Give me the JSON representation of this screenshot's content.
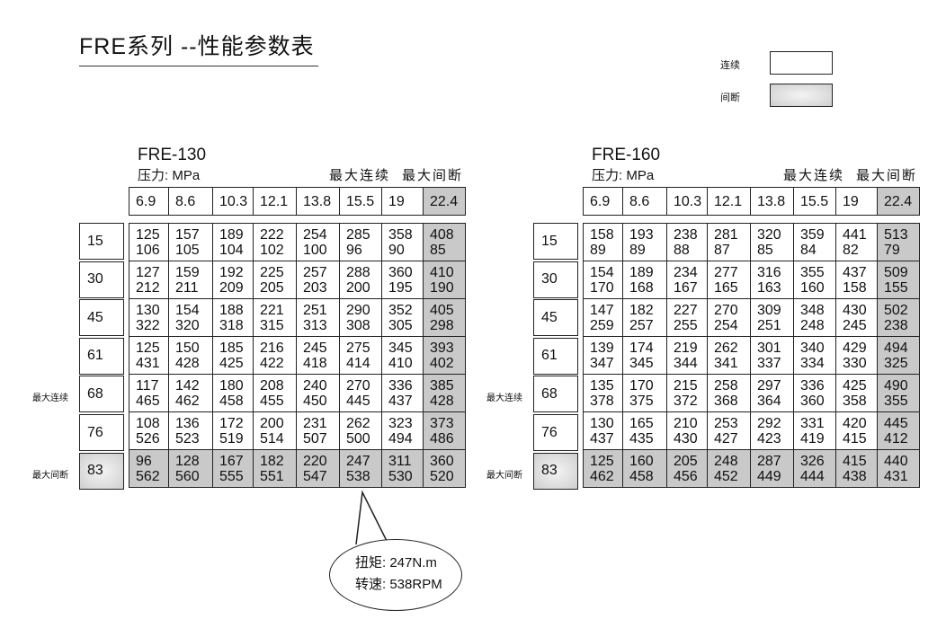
{
  "title": "FRE系列 --性能参数表",
  "legend": {
    "continuous": "连续",
    "intermittent": "间断"
  },
  "colors": {
    "intermittent_fill": "#c9c9c9",
    "border": "#222222"
  },
  "tables": [
    {
      "model": "FRE-130",
      "unit": "压力:  MPa",
      "max_continuous": "最大连续",
      "max_intermittent": "最大间断",
      "pressures": [
        "6.9",
        "8.6",
        "10.3",
        "12.1",
        "13.8",
        "15.5",
        "19",
        "22.4"
      ],
      "row_labels": [
        "15",
        "30",
        "45",
        "61",
        "68",
        "76",
        "83"
      ],
      "side_continuous": "最大连续",
      "side_intermittent": "最大间断",
      "rows": [
        [
          [
            "125",
            "106"
          ],
          [
            "157",
            "105"
          ],
          [
            "189",
            "104"
          ],
          [
            "222",
            "102"
          ],
          [
            "254",
            "100"
          ],
          [
            "285",
            "96"
          ],
          [
            "358",
            "90"
          ],
          [
            "408",
            "85"
          ]
        ],
        [
          [
            "127",
            "212"
          ],
          [
            "159",
            "211"
          ],
          [
            "192",
            "209"
          ],
          [
            "225",
            "205"
          ],
          [
            "257",
            "203"
          ],
          [
            "288",
            "200"
          ],
          [
            "360",
            "195"
          ],
          [
            "410",
            "190"
          ]
        ],
        [
          [
            "130",
            "322"
          ],
          [
            "154",
            "320"
          ],
          [
            "188",
            "318"
          ],
          [
            "221",
            "315"
          ],
          [
            "251",
            "313"
          ],
          [
            "290",
            "308"
          ],
          [
            "352",
            "305"
          ],
          [
            "405",
            "298"
          ]
        ],
        [
          [
            "125",
            "431"
          ],
          [
            "150",
            "428"
          ],
          [
            "185",
            "425"
          ],
          [
            "216",
            "422"
          ],
          [
            "245",
            "418"
          ],
          [
            "275",
            "414"
          ],
          [
            "345",
            "410"
          ],
          [
            "393",
            "402"
          ]
        ],
        [
          [
            "117",
            "465"
          ],
          [
            "142",
            "462"
          ],
          [
            "180",
            "458"
          ],
          [
            "208",
            "455"
          ],
          [
            "240",
            "450"
          ],
          [
            "270",
            "445"
          ],
          [
            "336",
            "437"
          ],
          [
            "385",
            "428"
          ]
        ],
        [
          [
            "108",
            "526"
          ],
          [
            "136",
            "523"
          ],
          [
            "172",
            "519"
          ],
          [
            "200",
            "514"
          ],
          [
            "231",
            "507"
          ],
          [
            "262",
            "500"
          ],
          [
            "323",
            "494"
          ],
          [
            "373",
            "486"
          ]
        ],
        [
          [
            "96",
            "562"
          ],
          [
            "128",
            "560"
          ],
          [
            "167",
            "555"
          ],
          [
            "182",
            "551"
          ],
          [
            "220",
            "547"
          ],
          [
            "247",
            "538"
          ],
          [
            "311",
            "530"
          ],
          [
            "360",
            "520"
          ]
        ]
      ]
    },
    {
      "model": "FRE-160",
      "unit": "压力:  MPa",
      "max_continuous": "最大连续",
      "max_intermittent": "最大间断",
      "pressures": [
        "6.9",
        "8.6",
        "10.3",
        "12.1",
        "13.8",
        "15.5",
        "19",
        "22.4"
      ],
      "row_labels": [
        "15",
        "30",
        "45",
        "61",
        "68",
        "76",
        "83"
      ],
      "side_continuous": "最大连续",
      "side_intermittent": "最大间断",
      "rows": [
        [
          [
            "158",
            "89"
          ],
          [
            "193",
            "89"
          ],
          [
            "238",
            "88"
          ],
          [
            "281",
            "87"
          ],
          [
            "320",
            "85"
          ],
          [
            "359",
            "84"
          ],
          [
            "441",
            "82"
          ],
          [
            "513",
            "79"
          ]
        ],
        [
          [
            "154",
            "170"
          ],
          [
            "189",
            "168"
          ],
          [
            "234",
            "167"
          ],
          [
            "277",
            "165"
          ],
          [
            "316",
            "163"
          ],
          [
            "355",
            "160"
          ],
          [
            "437",
            "158"
          ],
          [
            "509",
            "155"
          ]
        ],
        [
          [
            "147",
            "259"
          ],
          [
            "182",
            "257"
          ],
          [
            "227",
            "255"
          ],
          [
            "270",
            "254"
          ],
          [
            "309",
            "251"
          ],
          [
            "348",
            "248"
          ],
          [
            "430",
            "245"
          ],
          [
            "502",
            "238"
          ]
        ],
        [
          [
            "139",
            "347"
          ],
          [
            "174",
            "345"
          ],
          [
            "219",
            "344"
          ],
          [
            "262",
            "341"
          ],
          [
            "301",
            "337"
          ],
          [
            "340",
            "334"
          ],
          [
            "429",
            "330"
          ],
          [
            "494",
            "325"
          ]
        ],
        [
          [
            "135",
            "378"
          ],
          [
            "170",
            "375"
          ],
          [
            "215",
            "372"
          ],
          [
            "258",
            "368"
          ],
          [
            "297",
            "364"
          ],
          [
            "336",
            "360"
          ],
          [
            "425",
            "358"
          ],
          [
            "490",
            "355"
          ]
        ],
        [
          [
            "130",
            "437"
          ],
          [
            "165",
            "435"
          ],
          [
            "210",
            "430"
          ],
          [
            "253",
            "427"
          ],
          [
            "292",
            "423"
          ],
          [
            "331",
            "419"
          ],
          [
            "420",
            "415"
          ],
          [
            "445",
            "412"
          ]
        ],
        [
          [
            "125",
            "462"
          ],
          [
            "160",
            "458"
          ],
          [
            "205",
            "456"
          ],
          [
            "248",
            "452"
          ],
          [
            "287",
            "449"
          ],
          [
            "326",
            "444"
          ],
          [
            "415",
            "438"
          ],
          [
            "440",
            "431"
          ]
        ]
      ]
    }
  ],
  "callout": {
    "torque": "扭矩: 247N.m",
    "speed": "转速: 538RPM"
  }
}
